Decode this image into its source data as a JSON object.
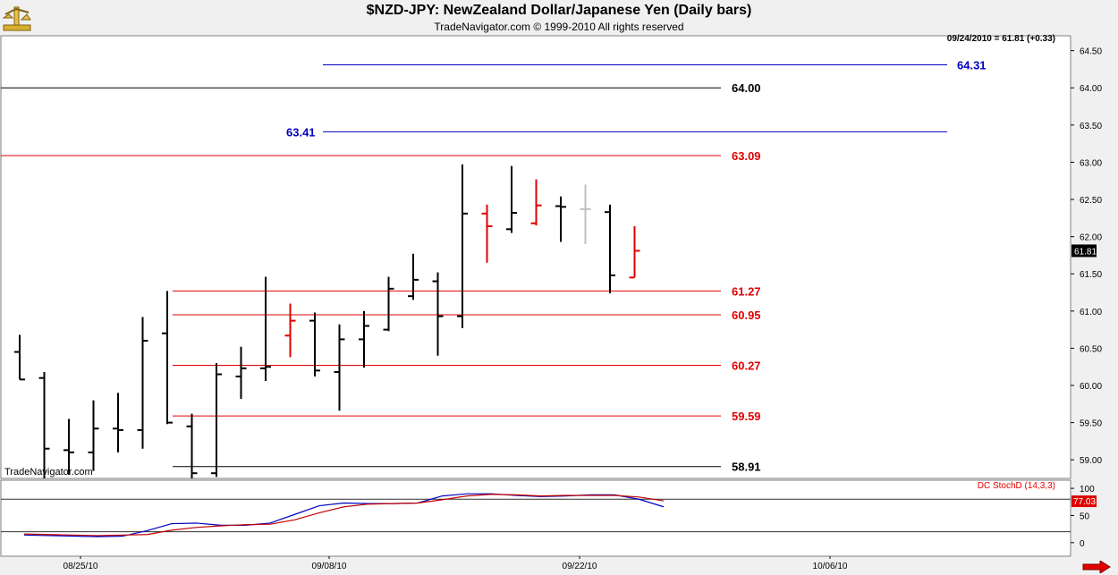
{
  "header": {
    "title": "$NZD-JPY:  NewZealand Dollar/Japanese Yen  (Daily bars)",
    "subtitle": "TradeNavigator.com © 1999-2010 All rights reserved",
    "price_readout": "09/24/2010 = 61.81 (+0.33)",
    "watermark": "TradeNavigator.com"
  },
  "chart_data": [
    {
      "type": "ohlc",
      "title": "$NZD-JPY:  NewZealand Dollar/Japanese Yen  (Daily bars)",
      "y_ticks": [
        "64.50",
        "64.00",
        "63.50",
        "63.00",
        "62.50",
        "62.00",
        "61.50",
        "61.00",
        "60.50",
        "60.00",
        "59.50",
        "59.00"
      ],
      "ylim": [
        58.75,
        64.7
      ],
      "last_price_label": "61.81",
      "x_labels": [
        "08/25/10",
        "09/08/10",
        "09/22/10",
        "10/06/10"
      ],
      "bars": [
        {
          "o": 60.45,
          "h": 60.68,
          "l": 60.08,
          "c": 60.08,
          "color": "#000000"
        },
        {
          "o": 60.1,
          "h": 60.18,
          "l": 58.6,
          "c": 59.15,
          "color": "#000000"
        },
        {
          "o": 59.13,
          "h": 59.55,
          "l": 58.8,
          "c": 59.1,
          "color": "#000000"
        },
        {
          "o": 59.1,
          "h": 59.8,
          "l": 58.85,
          "c": 59.42,
          "color": "#000000"
        },
        {
          "o": 59.42,
          "h": 59.9,
          "l": 59.1,
          "c": 59.4,
          "color": "#000000"
        },
        {
          "o": 59.4,
          "h": 60.92,
          "l": 59.15,
          "c": 60.6,
          "color": "#000000"
        },
        {
          "o": 60.7,
          "h": 61.27,
          "l": 59.48,
          "c": 59.5,
          "color": "#000000"
        },
        {
          "o": 59.45,
          "h": 59.62,
          "l": 58.7,
          "c": 58.82,
          "color": "#000000"
        },
        {
          "o": 58.82,
          "h": 60.3,
          "l": 58.77,
          "c": 60.15,
          "color": "#000000"
        },
        {
          "o": 60.12,
          "h": 60.52,
          "l": 59.82,
          "c": 60.23,
          "color": "#000000"
        },
        {
          "o": 60.23,
          "h": 61.46,
          "l": 60.06,
          "c": 60.25,
          "color": "#000000"
        },
        {
          "o": 60.67,
          "h": 61.1,
          "l": 60.38,
          "c": 60.87,
          "color": "#e00000"
        },
        {
          "o": 60.87,
          "h": 60.98,
          "l": 60.12,
          "c": 60.2,
          "color": "#000000"
        },
        {
          "o": 60.18,
          "h": 60.82,
          "l": 59.66,
          "c": 60.62,
          "color": "#000000"
        },
        {
          "o": 60.62,
          "h": 61.0,
          "l": 60.24,
          "c": 60.8,
          "color": "#000000"
        },
        {
          "o": 60.75,
          "h": 61.46,
          "l": 60.73,
          "c": 61.3,
          "color": "#000000"
        },
        {
          "o": 61.2,
          "h": 61.77,
          "l": 61.15,
          "c": 61.42,
          "color": "#000000"
        },
        {
          "o": 61.4,
          "h": 61.52,
          "l": 60.4,
          "c": 60.93,
          "color": "#000000"
        },
        {
          "o": 60.93,
          "h": 62.97,
          "l": 60.77,
          "c": 62.31,
          "color": "#000000"
        },
        {
          "o": 62.31,
          "h": 62.43,
          "l": 61.65,
          "c": 62.14,
          "color": "#e00000"
        },
        {
          "o": 62.1,
          "h": 62.95,
          "l": 62.05,
          "c": 62.32,
          "color": "#000000"
        },
        {
          "o": 62.18,
          "h": 62.77,
          "l": 62.15,
          "c": 62.42,
          "color": "#e00000"
        },
        {
          "o": 62.41,
          "h": 62.54,
          "l": 61.93,
          "c": 62.4,
          "color": "#000000"
        },
        {
          "o": 62.37,
          "h": 62.7,
          "l": 61.9,
          "c": 62.37,
          "color": "#bfbfbf"
        },
        {
          "o": 62.33,
          "h": 62.43,
          "l": 61.24,
          "c": 61.48,
          "color": "#000000"
        },
        {
          "o": 61.45,
          "h": 62.14,
          "l": 61.45,
          "c": 61.81,
          "color": "#e00000"
        }
      ],
      "levels": [
        {
          "label": "64.31",
          "value": 64.31,
          "color": "#0000c0",
          "label_side": "right"
        },
        {
          "label": "64.00",
          "value": 64.0,
          "color": "#000000",
          "label_side": "right"
        },
        {
          "label": "63.41",
          "value": 63.41,
          "color": "#0000c0",
          "label_side": "left"
        },
        {
          "label": "63.09",
          "value": 63.09,
          "color": "#e00000",
          "label_side": "right"
        },
        {
          "label": "61.27",
          "value": 61.27,
          "color": "#e00000",
          "label_side": "right"
        },
        {
          "label": "60.95",
          "value": 60.95,
          "color": "#e00000",
          "label_side": "right"
        },
        {
          "label": "60.27",
          "value": 60.27,
          "color": "#e00000",
          "label_side": "right"
        },
        {
          "label": "59.59",
          "value": 59.59,
          "color": "#e00000",
          "label_side": "right"
        },
        {
          "label": "58.91",
          "value": 58.91,
          "color": "#000000",
          "label_side": "right"
        }
      ]
    },
    {
      "type": "line",
      "title": "DC StochD (14,3,3)",
      "y_ticks": [
        "100",
        "50",
        "0"
      ],
      "ylim": [
        -25,
        115
      ],
      "reference_lines": [
        80,
        20
      ],
      "last_value_label": "77.03",
      "series": [
        {
          "color": "#0000c0",
          "values": [
            14,
            13,
            12,
            11,
            12,
            22,
            35,
            36,
            32,
            32,
            36,
            52,
            68,
            73,
            72,
            72,
            73,
            86,
            90,
            90,
            87,
            85,
            86,
            88,
            88,
            80,
            66
          ]
        },
        {
          "color": "#c00000",
          "values": [
            16,
            15,
            14,
            13,
            14,
            15,
            23,
            28,
            31,
            33,
            34,
            42,
            55,
            66,
            71,
            72,
            73,
            79,
            86,
            89,
            88,
            86,
            87,
            87,
            87,
            84,
            77
          ]
        }
      ]
    }
  ],
  "theme": {
    "background": "#ffffff",
    "frame": "#f0f0f0",
    "axis_text": "#000000",
    "price_box": "#000000",
    "stoch_box": "#e00000",
    "arrow": "#e00000"
  }
}
